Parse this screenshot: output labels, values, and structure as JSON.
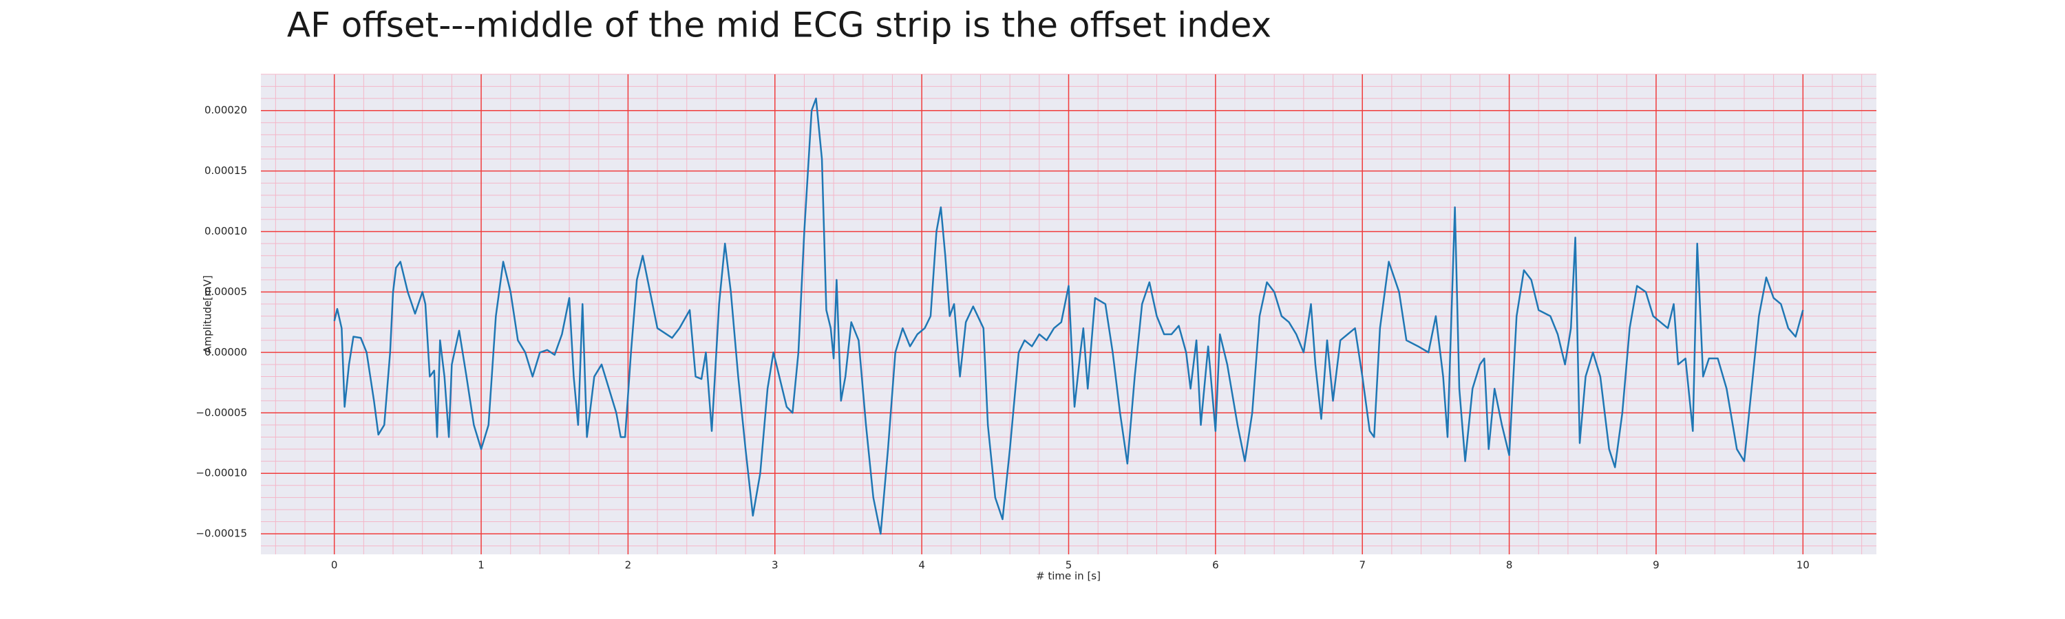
{
  "chart_data": {
    "type": "line",
    "title": "AF offset---middle of the mid ECG strip is the offset index",
    "xlabel": "# time in [s]",
    "ylabel": "Amplitude[mV]",
    "color": "#1f77b4",
    "grid": true,
    "minor_grid": true,
    "xlim": [
      -0.5,
      10.5
    ],
    "ylim": [
      -0.000167,
      0.00023
    ],
    "xticks": [
      0,
      1,
      2,
      3,
      4,
      5,
      6,
      7,
      8,
      9,
      10
    ],
    "yticks": [
      {
        "value": -0.00015,
        "label": "−0.00015"
      },
      {
        "value": -0.0001,
        "label": "−0.00010"
      },
      {
        "value": -5e-05,
        "label": "−0.00005"
      },
      {
        "value": 0,
        "label": "0.00000"
      },
      {
        "value": 5e-05,
        "label": "0.00005"
      },
      {
        "value": 0.0001,
        "label": "0.00010"
      },
      {
        "value": 0.00015,
        "label": "0.00015"
      },
      {
        "value": 0.0002,
        "label": "0.00020"
      }
    ],
    "x": [
      0,
      0.02,
      0.05,
      0.07,
      0.1,
      0.13,
      0.18,
      0.22,
      0.27,
      0.3,
      0.34,
      0.38,
      0.4,
      0.42,
      0.45,
      0.5,
      0.55,
      0.6,
      0.62,
      0.65,
      0.68,
      0.7,
      0.72,
      0.75,
      0.78,
      0.8,
      0.85,
      0.9,
      0.95,
      1.0,
      1.05,
      1.1,
      1.15,
      1.2,
      1.25,
      1.3,
      1.35,
      1.4,
      1.45,
      1.5,
      1.55,
      1.6,
      1.63,
      1.66,
      1.69,
      1.72,
      1.77,
      1.82,
      1.87,
      1.92,
      1.95,
      1.98,
      2.02,
      2.06,
      2.1,
      2.15,
      2.2,
      2.3,
      2.35,
      2.42,
      2.46,
      2.5,
      2.53,
      2.57,
      2.62,
      2.66,
      2.7,
      2.75,
      2.8,
      2.85,
      2.9,
      2.95,
      2.99,
      3.03,
      3.08,
      3.12,
      3.16,
      3.2,
      3.25,
      3.28,
      3.32,
      3.35,
      3.38,
      3.4,
      3.42,
      3.45,
      3.48,
      3.52,
      3.57,
      3.62,
      3.67,
      3.72,
      3.77,
      3.82,
      3.87,
      3.92,
      3.97,
      4.02,
      4.06,
      4.1,
      4.13,
      4.16,
      4.19,
      4.22,
      4.26,
      4.3,
      4.35,
      4.42,
      4.45,
      4.5,
      4.55,
      4.6,
      4.66,
      4.7,
      4.75,
      4.8,
      4.85,
      4.9,
      4.95,
      5.0,
      5.04,
      5.08,
      5.1,
      5.13,
      5.18,
      5.25,
      5.3,
      5.35,
      5.4,
      5.45,
      5.5,
      5.55,
      5.6,
      5.65,
      5.7,
      5.75,
      5.8,
      5.83,
      5.87,
      5.9,
      5.95,
      6.0,
      6.03,
      6.08,
      6.15,
      6.2,
      6.25,
      6.3,
      6.35,
      6.4,
      6.45,
      6.5,
      6.55,
      6.6,
      6.65,
      6.68,
      6.72,
      6.76,
      6.8,
      6.85,
      6.9,
      6.95,
      7.0,
      7.05,
      7.08,
      7.12,
      7.18,
      7.25,
      7.3,
      7.38,
      7.45,
      7.5,
      7.55,
      7.58,
      7.63,
      7.66,
      7.7,
      7.75,
      7.8,
      7.83,
      7.86,
      7.9,
      7.95,
      8.0,
      8.05,
      8.1,
      8.15,
      8.2,
      8.28,
      8.33,
      8.38,
      8.42,
      8.45,
      8.48,
      8.52,
      8.57,
      8.62,
      8.68,
      8.72,
      8.77,
      8.82,
      8.87,
      8.93,
      8.98,
      9.03,
      9.08,
      9.12,
      9.15,
      9.2,
      9.25,
      9.28,
      9.32,
      9.36,
      9.42,
      9.48,
      9.55,
      9.6,
      9.65,
      9.7,
      9.75,
      9.8,
      9.85,
      9.9,
      9.95,
      10.0
    ],
    "values": [
      2.6e-05,
      3.6e-05,
      2e-05,
      -4.5e-05,
      -1e-05,
      1.3e-05,
      1.2e-05,
      0,
      -4e-05,
      -6.8e-05,
      -6e-05,
      0,
      5e-05,
      7e-05,
      7.5e-05,
      5e-05,
      3.2e-05,
      5e-05,
      4e-05,
      -2e-05,
      -1.5e-05,
      -7e-05,
      1e-05,
      -2e-05,
      -7e-05,
      -1e-05,
      1.8e-05,
      -2e-05,
      -6e-05,
      -8e-05,
      -6e-05,
      3e-05,
      7.5e-05,
      5e-05,
      1e-05,
      0,
      -2e-05,
      0,
      2e-06,
      -2e-06,
      1.5e-05,
      4.5e-05,
      -2e-05,
      -6e-05,
      4e-05,
      -7e-05,
      -2e-05,
      -1e-05,
      -3e-05,
      -5e-05,
      -7e-05,
      -7e-05,
      0,
      6e-05,
      8e-05,
      5e-05,
      2e-05,
      1.2e-05,
      2e-05,
      3.5e-05,
      -2e-05,
      -2.2e-05,
      0,
      -6.5e-05,
      4e-05,
      9e-05,
      5e-05,
      -2e-05,
      -8e-05,
      -0.000135,
      -0.0001,
      -3e-05,
      0,
      -2e-05,
      -4.5e-05,
      -5e-05,
      0,
      0.0001,
      0.0002,
      0.00021,
      0.00016,
      3.5e-05,
      2e-05,
      -5e-06,
      6e-05,
      -4e-05,
      -2e-05,
      2.5e-05,
      1e-05,
      -6e-05,
      -0.00012,
      -0.00015,
      -8e-05,
      0,
      2e-05,
      5e-06,
      1.5e-05,
      2e-05,
      3e-05,
      0.0001,
      0.00012,
      8e-05,
      3e-05,
      4e-05,
      -2e-05,
      2.5e-05,
      3.8e-05,
      2e-05,
      -6e-05,
      -0.00012,
      -0.000138,
      -8e-05,
      0,
      1e-05,
      5e-06,
      1.5e-05,
      1e-05,
      2e-05,
      2.5e-05,
      5.5e-05,
      -4.5e-05,
      0,
      2e-05,
      -3e-05,
      4.5e-05,
      4e-05,
      0,
      -5e-05,
      -9.2e-05,
      -2e-05,
      4e-05,
      5.8e-05,
      3e-05,
      1.5e-05,
      1.5e-05,
      2.2e-05,
      0,
      -3e-05,
      1e-05,
      -6e-05,
      5e-06,
      -6.5e-05,
      1.5e-05,
      -1e-05,
      -6e-05,
      -9e-05,
      -5e-05,
      3e-05,
      5.8e-05,
      5e-05,
      3e-05,
      2.5e-05,
      1.5e-05,
      0,
      4e-05,
      -1e-05,
      -5.5e-05,
      1e-05,
      -4e-05,
      1e-05,
      1.5e-05,
      2e-05,
      -2e-05,
      -6.5e-05,
      -7e-05,
      2e-05,
      7.5e-05,
      5e-05,
      1e-05,
      5e-06,
      0,
      3e-05,
      -2e-05,
      -7e-05,
      0.00012,
      -3e-05,
      -9e-05,
      -3e-05,
      -1e-05,
      -5e-06,
      -8e-05,
      -3e-05,
      -6e-05,
      -8.5e-05,
      3e-05,
      6.8e-05,
      6e-05,
      3.5e-05,
      3e-05,
      1.5e-05,
      -1e-05,
      2e-05,
      9.5e-05,
      -7.5e-05,
      -2e-05,
      0,
      -2e-05,
      -8e-05,
      -9.5e-05,
      -5e-05,
      2e-05,
      5.5e-05,
      5e-05,
      3e-05,
      2.5e-05,
      2e-05,
      4e-05,
      -1e-05,
      -5e-06,
      -6.5e-05,
      9e-05,
      -2e-05,
      -5e-06,
      -5e-06,
      -3e-05,
      -8e-05,
      -9e-05,
      -3e-05,
      3e-05,
      6.2e-05,
      4.5e-05,
      4e-05,
      2e-05,
      1.3e-05,
      3.5e-05
    ]
  }
}
